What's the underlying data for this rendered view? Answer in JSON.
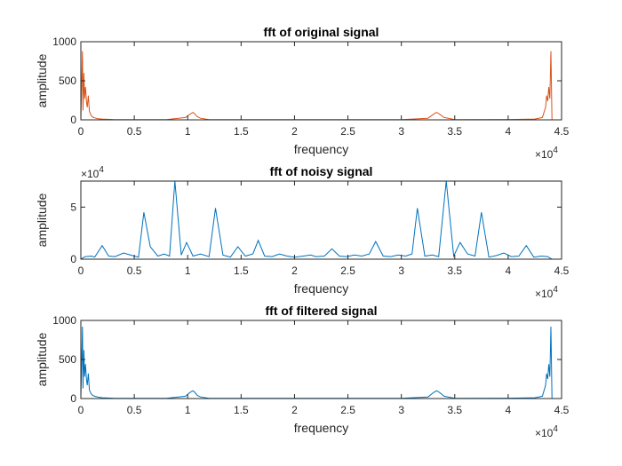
{
  "chart_data": [
    {
      "type": "line",
      "title": "fft of original signal",
      "xlabel": "frequency",
      "ylabel": "amplitude",
      "xlim": [
        0,
        45000
      ],
      "ylim": [
        0,
        1000
      ],
      "xticks": [
        "0",
        "0.5",
        "1",
        "1.5",
        "2",
        "2.5",
        "3",
        "3.5",
        "4",
        "4.5"
      ],
      "yticks": [
        "0",
        "500",
        "1000"
      ],
      "x_multiplier": "×10",
      "x_multiplier_exp": "4",
      "y_multiplier": "",
      "y_multiplier_exp": "",
      "grid": false,
      "color": "#D95319",
      "series": [
        {
          "x": [
            0,
            150,
            200,
            280,
            350,
            430,
            520,
            600,
            700,
            800,
            950,
            1100,
            1300,
            1600,
            2000,
            3000,
            5000,
            8000,
            9800,
            10100,
            10300,
            10500,
            10700,
            10900,
            11200,
            12000,
            20000,
            30000,
            32500,
            33000,
            33300,
            33500,
            33700,
            34000,
            35000,
            40000,
            42500,
            43200,
            43500,
            43600,
            43700,
            43800,
            43900,
            44000,
            44100
          ],
          "y": [
            0,
            880,
            120,
            600,
            270,
            420,
            240,
            160,
            310,
            110,
            60,
            35,
            25,
            15,
            10,
            5,
            3,
            3,
            30,
            60,
            80,
            95,
            70,
            40,
            20,
            3,
            2,
            3,
            20,
            70,
            95,
            80,
            60,
            30,
            3,
            5,
            10,
            30,
            160,
            310,
            240,
            420,
            270,
            880,
            0
          ]
        }
      ]
    },
    {
      "type": "line",
      "title": "fft of noisy signal",
      "xlabel": "frequency",
      "ylabel": "amplitude",
      "xlim": [
        0,
        45000
      ],
      "ylim": [
        0,
        75000
      ],
      "xticks": [
        "0",
        "0.5",
        "1",
        "1.5",
        "2",
        "2.5",
        "3",
        "3.5",
        "4",
        "4.5"
      ],
      "yticks": [
        "0",
        "5"
      ],
      "x_multiplier": "×10",
      "x_multiplier_exp": "4",
      "y_multiplier": "×10",
      "y_multiplier_exp": "4",
      "grid": false,
      "color": "#0072BD",
      "series": [
        {
          "x": [
            0,
            400,
            1000,
            1300,
            2000,
            2600,
            3200,
            4000,
            4800,
            5400,
            5900,
            6500,
            7200,
            7800,
            8300,
            8800,
            9400,
            9900,
            10500,
            11200,
            12000,
            12600,
            13300,
            14000,
            14700,
            15400,
            16100,
            16600,
            17200,
            17900,
            18600,
            19300,
            20000,
            20800,
            21500,
            22000,
            22800,
            23500,
            24200,
            24900,
            25600,
            26300,
            27000,
            27600,
            28300,
            29000,
            29700,
            30400,
            31000,
            31500,
            32200,
            32900,
            33500,
            34200,
            34900,
            35500,
            36200,
            36900,
            37500,
            38200,
            38900,
            39600,
            40300,
            41000,
            41700,
            42400,
            43100,
            43700,
            44100
          ],
          "y": [
            0,
            2500,
            3000,
            2000,
            13000,
            3000,
            2500,
            6000,
            3500,
            2000,
            45000,
            12000,
            3000,
            5000,
            3000,
            75000,
            4000,
            16000,
            3000,
            5000,
            2500,
            49000,
            4000,
            2000,
            12000,
            3000,
            5000,
            18000,
            3000,
            2500,
            5000,
            3000,
            2000,
            3000,
            4000,
            2500,
            3000,
            10000,
            3000,
            2500,
            4000,
            3000,
            5000,
            17000,
            3000,
            2500,
            4000,
            3000,
            5000,
            49000,
            3000,
            4000,
            2500,
            75000,
            3000,
            16000,
            5000,
            3000,
            45000,
            2000,
            3500,
            6000,
            2500,
            3000,
            13000,
            2000,
            3000,
            2500,
            0
          ]
        }
      ]
    },
    {
      "type": "line",
      "title": "fft of filtered signal",
      "xlabel": "frequency",
      "ylabel": "amplitude",
      "xlim": [
        0,
        45000
      ],
      "ylim": [
        0,
        1000
      ],
      "xticks": [
        "0",
        "0.5",
        "1",
        "1.5",
        "2",
        "2.5",
        "3",
        "3.5",
        "4",
        "4.5"
      ],
      "yticks": [
        "0",
        "500",
        "1000"
      ],
      "x_multiplier": "×10",
      "x_multiplier_exp": "4",
      "y_multiplier": "",
      "y_multiplier_exp": "",
      "grid": false,
      "color": "#0072BD",
      "series": [
        {
          "x": [
            0,
            150,
            200,
            280,
            350,
            430,
            520,
            600,
            700,
            800,
            950,
            1100,
            1300,
            1600,
            2000,
            3000,
            5000,
            8000,
            9800,
            10100,
            10300,
            10500,
            10700,
            10900,
            11200,
            12000,
            20000,
            30000,
            32500,
            33000,
            33300,
            33500,
            33700,
            34000,
            35000,
            40000,
            42500,
            43200,
            43500,
            43600,
            43700,
            43800,
            43900,
            44000,
            44100
          ],
          "y": [
            0,
            920,
            130,
            620,
            280,
            440,
            250,
            170,
            320,
            110,
            65,
            40,
            30,
            18,
            10,
            5,
            3,
            3,
            30,
            65,
            85,
            100,
            75,
            40,
            20,
            3,
            2,
            3,
            20,
            75,
            100,
            85,
            65,
            30,
            3,
            5,
            10,
            30,
            170,
            320,
            250,
            440,
            280,
            920,
            0
          ]
        }
      ]
    }
  ]
}
